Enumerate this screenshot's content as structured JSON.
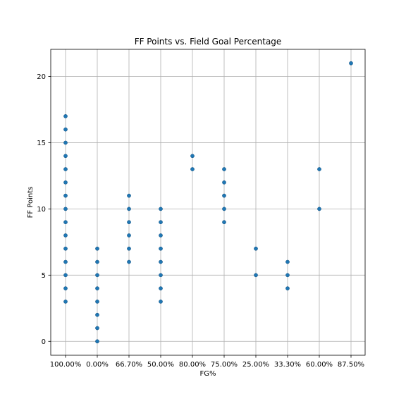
{
  "chart_data": {
    "type": "scatter",
    "title": "FF Points vs. Field Goal Percentage",
    "xlabel": "FG%",
    "ylabel": "FF Points",
    "categories": [
      "100.00%",
      "0.00%",
      "66.70%",
      "50.00%",
      "80.00%",
      "75.00%",
      "25.00%",
      "33.30%",
      "60.00%",
      "87.50%"
    ],
    "y_ticks": [
      0,
      5,
      10,
      15,
      20
    ],
    "ylim": [
      -1.05,
      22.05
    ],
    "grid": true,
    "point_color": "#1f77b4",
    "points": [
      [
        "100.00%",
        3
      ],
      [
        "100.00%",
        4
      ],
      [
        "100.00%",
        5
      ],
      [
        "100.00%",
        6
      ],
      [
        "100.00%",
        7
      ],
      [
        "100.00%",
        8
      ],
      [
        "100.00%",
        9
      ],
      [
        "100.00%",
        10
      ],
      [
        "100.00%",
        11
      ],
      [
        "100.00%",
        12
      ],
      [
        "100.00%",
        13
      ],
      [
        "100.00%",
        14
      ],
      [
        "100.00%",
        15
      ],
      [
        "100.00%",
        16
      ],
      [
        "100.00%",
        17
      ],
      [
        "0.00%",
        0
      ],
      [
        "0.00%",
        1
      ],
      [
        "0.00%",
        2
      ],
      [
        "0.00%",
        3
      ],
      [
        "0.00%",
        4
      ],
      [
        "0.00%",
        5
      ],
      [
        "0.00%",
        6
      ],
      [
        "0.00%",
        7
      ],
      [
        "66.70%",
        6
      ],
      [
        "66.70%",
        7
      ],
      [
        "66.70%",
        8
      ],
      [
        "66.70%",
        9
      ],
      [
        "66.70%",
        10
      ],
      [
        "66.70%",
        11
      ],
      [
        "50.00%",
        3
      ],
      [
        "50.00%",
        4
      ],
      [
        "50.00%",
        5
      ],
      [
        "50.00%",
        6
      ],
      [
        "50.00%",
        7
      ],
      [
        "50.00%",
        8
      ],
      [
        "50.00%",
        9
      ],
      [
        "50.00%",
        10
      ],
      [
        "80.00%",
        13
      ],
      [
        "80.00%",
        14
      ],
      [
        "75.00%",
        9
      ],
      [
        "75.00%",
        10
      ],
      [
        "75.00%",
        11
      ],
      [
        "75.00%",
        12
      ],
      [
        "75.00%",
        13
      ],
      [
        "25.00%",
        5
      ],
      [
        "25.00%",
        7
      ],
      [
        "33.30%",
        4
      ],
      [
        "33.30%",
        5
      ],
      [
        "33.30%",
        6
      ],
      [
        "60.00%",
        10
      ],
      [
        "60.00%",
        13
      ],
      [
        "87.50%",
        21
      ]
    ]
  }
}
